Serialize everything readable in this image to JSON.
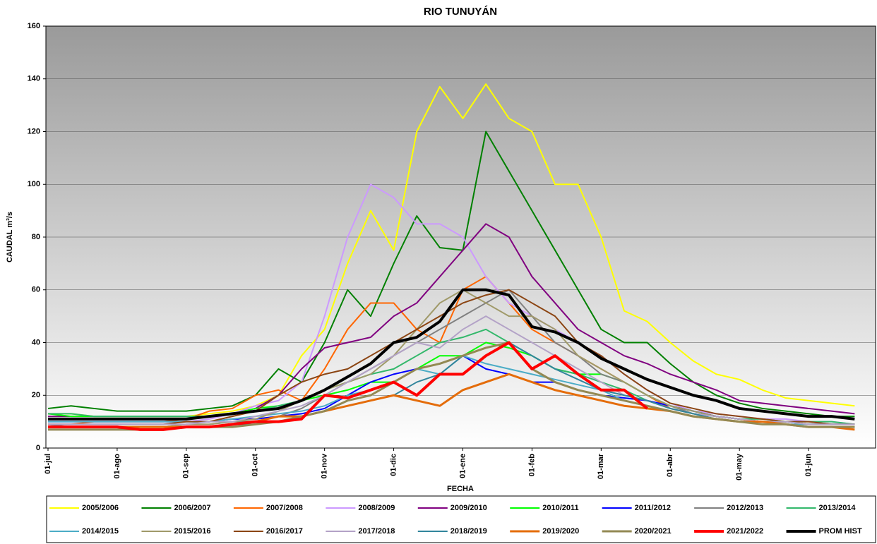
{
  "chart_data": {
    "type": "line",
    "title": "RIO TUNUYÁN",
    "x_label": "FECHA",
    "y_label": "CAUDAL m³/s",
    "categories": [
      "01-jul",
      null,
      null,
      "01-ago",
      null,
      null,
      "01-sep",
      null,
      null,
      "01-oct",
      null,
      null,
      "01-nov",
      null,
      null,
      "01-dic",
      null,
      null,
      "01-ene",
      null,
      null,
      "01-feb",
      null,
      null,
      "01-mar",
      null,
      null,
      "01-abr",
      null,
      null,
      "01-may",
      null,
      null,
      "01-jun",
      null,
      null
    ],
    "ylim": [
      0,
      160
    ],
    "yticks": [
      0,
      20,
      40,
      60,
      80,
      100,
      120,
      140,
      160
    ],
    "grid": true,
    "legend": "bottom",
    "series": [
      {
        "name": "2005/2006",
        "color": "#ffff00",
        "line_width": 2,
        "values": [
          13,
          13,
          12,
          12,
          12,
          12,
          12,
          13,
          14,
          16,
          20,
          35,
          45,
          70,
          90,
          75,
          120,
          137,
          125,
          138,
          125,
          120,
          100,
          100,
          80,
          52,
          48,
          40,
          33,
          28,
          26,
          22,
          19,
          18,
          17,
          16
        ]
      },
      {
        "name": "2006/2007",
        "color": "#008000",
        "line_width": 2,
        "values": [
          15,
          16,
          15,
          14,
          14,
          14,
          14,
          15,
          16,
          20,
          30,
          25,
          40,
          60,
          50,
          70,
          88,
          76,
          75,
          120,
          105,
          90,
          75,
          60,
          45,
          40,
          40,
          32,
          25,
          20,
          17,
          15,
          14,
          13,
          12,
          12
        ]
      },
      {
        "name": "2007/2008",
        "color": "#ff6600",
        "line_width": 2,
        "values": [
          9,
          9,
          10,
          10,
          10,
          10,
          11,
          14,
          15,
          20,
          22,
          18,
          30,
          45,
          55,
          55,
          45,
          40,
          60,
          65,
          55,
          45,
          40,
          35,
          30,
          25,
          20,
          15,
          13,
          12,
          11,
          10,
          10,
          10,
          9,
          9
        ]
      },
      {
        "name": "2008/2009",
        "color": "#cc99ff",
        "line_width": 2,
        "values": [
          9,
          9,
          9,
          9,
          9,
          9,
          10,
          11,
          13,
          16,
          18,
          25,
          50,
          80,
          100,
          95,
          85,
          85,
          80,
          65,
          55,
          50,
          45,
          40,
          35,
          28,
          22,
          17,
          14,
          13,
          12,
          11,
          11,
          10,
          10,
          9
        ]
      },
      {
        "name": "2009/2010",
        "color": "#800080",
        "line_width": 2,
        "values": [
          12,
          12,
          12,
          12,
          12,
          12,
          12,
          12,
          13,
          15,
          20,
          30,
          38,
          40,
          42,
          50,
          55,
          65,
          75,
          85,
          80,
          65,
          55,
          45,
          40,
          35,
          32,
          28,
          25,
          22,
          18,
          17,
          16,
          15,
          14,
          13
        ]
      },
      {
        "name": "2010/2011",
        "color": "#00ff00",
        "line_width": 2,
        "values": [
          13,
          12,
          12,
          12,
          12,
          12,
          12,
          12,
          13,
          15,
          16,
          18,
          20,
          22,
          25,
          25,
          30,
          35,
          35,
          40,
          38,
          35,
          30,
          28,
          28,
          25,
          20,
          16,
          14,
          12,
          11,
          10,
          10,
          9,
          9,
          9
        ]
      },
      {
        "name": "2011/2012",
        "color": "#0000ff",
        "line_width": 2,
        "values": [
          10,
          10,
          10,
          10,
          10,
          10,
          10,
          10,
          11,
          11,
          12,
          13,
          15,
          20,
          25,
          28,
          30,
          32,
          35,
          30,
          28,
          25,
          25,
          22,
          20,
          19,
          18,
          16,
          14,
          12,
          11,
          10,
          10,
          9,
          9,
          9
        ]
      },
      {
        "name": "2012/2013",
        "color": "#808080",
        "line_width": 2,
        "values": [
          9,
          8,
          8,
          8,
          8,
          8,
          9,
          9,
          10,
          10,
          12,
          15,
          20,
          25,
          30,
          35,
          40,
          45,
          50,
          55,
          60,
          50,
          40,
          35,
          28,
          25,
          20,
          16,
          13,
          12,
          11,
          10,
          10,
          9,
          9,
          9
        ]
      },
      {
        "name": "2013/2014",
        "color": "#33b86b",
        "line_width": 2,
        "values": [
          13,
          13,
          12,
          12,
          12,
          12,
          12,
          12,
          13,
          14,
          16,
          18,
          22,
          25,
          28,
          30,
          35,
          40,
          42,
          45,
          40,
          35,
          30,
          28,
          25,
          22,
          18,
          15,
          13,
          12,
          11,
          11,
          10,
          10,
          10,
          9
        ]
      },
      {
        "name": "2014/2015",
        "color": "#4bacc6",
        "line_width": 2,
        "values": [
          10,
          10,
          10,
          10,
          10,
          10,
          10,
          10,
          11,
          12,
          13,
          14,
          16,
          20,
          22,
          25,
          30,
          28,
          35,
          32,
          30,
          28,
          26,
          24,
          22,
          18,
          16,
          14,
          12,
          11,
          10,
          10,
          9,
          9,
          9,
          9
        ]
      },
      {
        "name": "2015/2016",
        "color": "#a09a6a",
        "line_width": 2,
        "values": [
          8,
          8,
          8,
          8,
          8,
          8,
          9,
          9,
          10,
          11,
          14,
          18,
          22,
          25,
          28,
          35,
          45,
          55,
          60,
          55,
          50,
          50,
          45,
          35,
          30,
          25,
          20,
          16,
          14,
          12,
          11,
          10,
          10,
          9,
          9,
          9
        ]
      },
      {
        "name": "2016/2017",
        "color": "#8b4513",
        "line_width": 2,
        "values": [
          9,
          9,
          9,
          9,
          9,
          9,
          10,
          10,
          12,
          14,
          20,
          25,
          28,
          30,
          35,
          40,
          45,
          50,
          55,
          58,
          60,
          55,
          50,
          40,
          35,
          28,
          22,
          17,
          15,
          13,
          12,
          11,
          10,
          10,
          9,
          9
        ]
      },
      {
        "name": "2017/2018",
        "color": "#b3a2c7",
        "line_width": 2,
        "values": [
          9,
          9,
          9,
          9,
          9,
          9,
          9,
          10,
          10,
          12,
          14,
          16,
          20,
          25,
          30,
          35,
          40,
          38,
          45,
          50,
          45,
          40,
          35,
          30,
          25,
          20,
          18,
          15,
          13,
          12,
          11,
          10,
          10,
          9,
          9,
          9
        ]
      },
      {
        "name": "2018/2019",
        "color": "#31859c",
        "line_width": 2,
        "values": [
          8,
          8,
          8,
          8,
          8,
          8,
          8,
          8,
          9,
          9,
          10,
          12,
          14,
          16,
          18,
          20,
          25,
          28,
          35,
          38,
          40,
          35,
          30,
          26,
          22,
          20,
          18,
          15,
          13,
          11,
          10,
          9,
          9,
          8,
          8,
          8
        ]
      },
      {
        "name": "2019/2020",
        "color": "#e46c0a",
        "line_width": 3,
        "values": [
          8,
          8,
          8,
          8,
          8,
          8,
          8,
          8,
          9,
          10,
          12,
          12,
          14,
          16,
          18,
          20,
          18,
          16,
          22,
          25,
          28,
          25,
          22,
          20,
          18,
          16,
          15,
          14,
          12,
          11,
          10,
          10,
          9,
          8,
          8,
          7
        ]
      },
      {
        "name": "2020/2021",
        "color": "#938953",
        "line_width": 3,
        "values": [
          7,
          7,
          7,
          7,
          7,
          7,
          8,
          8,
          8,
          9,
          10,
          12,
          14,
          18,
          20,
          25,
          30,
          32,
          35,
          38,
          40,
          30,
          25,
          22,
          20,
          18,
          16,
          14,
          12,
          11,
          10,
          9,
          9,
          8,
          8,
          8
        ]
      },
      {
        "name": "2021/2022",
        "color": "#ff0000",
        "line_width": 4,
        "values": [
          8,
          8,
          8,
          8,
          7,
          7,
          8,
          8,
          9,
          10,
          10,
          11,
          20,
          19,
          22,
          25,
          20,
          28,
          28,
          35,
          40,
          30,
          35,
          28,
          22,
          22,
          15,
          null,
          null,
          null,
          null,
          null,
          null,
          null,
          null,
          null
        ]
      },
      {
        "name": "PROM HIST",
        "color": "#000000",
        "line_width": 4,
        "values": [
          11,
          11,
          11,
          11,
          11,
          11,
          11,
          12,
          13,
          14,
          15,
          18,
          22,
          27,
          32,
          40,
          42,
          48,
          60,
          60,
          58,
          46,
          44,
          40,
          34,
          30,
          26,
          23,
          20,
          18,
          15,
          14,
          13,
          12,
          12,
          11
        ]
      }
    ]
  }
}
